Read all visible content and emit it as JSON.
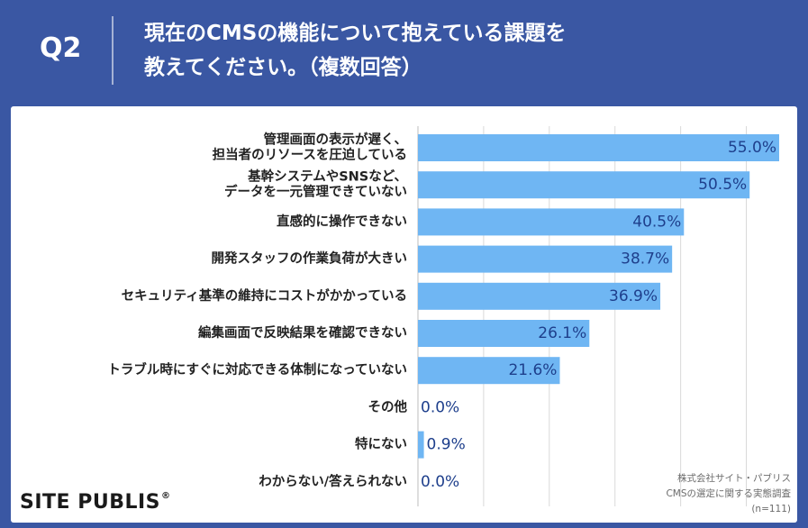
{
  "header": {
    "question_number": "Q2",
    "title_line1": "現在のCMSの機能について抱えている課題を",
    "title_line2": "教えてください。（複数回答）"
  },
  "chart_data": {
    "type": "bar",
    "orientation": "horizontal",
    "categories": [
      [
        "管理画面の表示が遅く、",
        "担当者のリソースを圧迫している"
      ],
      [
        "基幹システムやSNSなど、",
        "データを一元管理できていない"
      ],
      [
        "直感的に操作できない"
      ],
      [
        "開発スタッフの作業負荷が大きい"
      ],
      [
        "セキュリティ基準の維持にコストがかかっている"
      ],
      [
        "編集画面で反映結果を確認できない"
      ],
      [
        "トラブル時にすぐに対応できる体制になっていない"
      ],
      [
        "その他"
      ],
      [
        "特にない"
      ],
      [
        "わからない/答えられない"
      ]
    ],
    "values": [
      55.0,
      50.5,
      40.5,
      38.7,
      36.9,
      26.1,
      21.6,
      0.0,
      0.9,
      0.0
    ],
    "value_labels": [
      "55.0%",
      "50.5%",
      "40.5%",
      "38.7%",
      "36.9%",
      "26.1%",
      "21.6%",
      "0.0%",
      "0.9%",
      "0.0%"
    ],
    "xlim": [
      0,
      55
    ],
    "gridlines": [
      10,
      20,
      30,
      40,
      50
    ],
    "bar_color": "#6fb6f3",
    "label_color": "#1e3f8c"
  },
  "footer": {
    "logo_text": "SITE PUBLIS",
    "logo_mark": "®",
    "source_line1": "株式会社サイト・パブリス",
    "source_line2": "CMSの選定に関する実態調査",
    "source_line3": "(n=111)"
  },
  "colors": {
    "background": "#3a57a3",
    "panel": "#ffffff"
  }
}
